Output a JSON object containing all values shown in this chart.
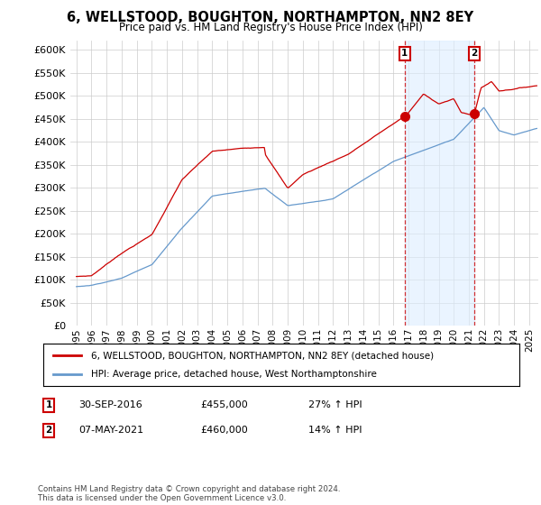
{
  "title": "6, WELLSTOOD, BOUGHTON, NORTHAMPTON, NN2 8EY",
  "subtitle": "Price paid vs. HM Land Registry's House Price Index (HPI)",
  "ylim": [
    0,
    620000
  ],
  "yticks": [
    0,
    50000,
    100000,
    150000,
    200000,
    250000,
    300000,
    350000,
    400000,
    450000,
    500000,
    550000,
    600000
  ],
  "legend_line1": "6, WELLSTOOD, BOUGHTON, NORTHAMPTON, NN2 8EY (detached house)",
  "legend_line2": "HPI: Average price, detached house, West Northamptonshire",
  "point1_date": "30-SEP-2016",
  "point1_price": "£455,000",
  "point1_hpi": "27% ↑ HPI",
  "point1_x": 2016.75,
  "point1_y": 455000,
  "point2_date": "07-MAY-2021",
  "point2_price": "£460,000",
  "point2_hpi": "14% ↑ HPI",
  "point2_x": 2021.35,
  "point2_y": 460000,
  "red_color": "#cc0000",
  "blue_color": "#6699cc",
  "shade_color": "#ddeeff",
  "footer": "Contains HM Land Registry data © Crown copyright and database right 2024.\nThis data is licensed under the Open Government Licence v3.0.",
  "xmin": 1994.6,
  "xmax": 2025.6
}
